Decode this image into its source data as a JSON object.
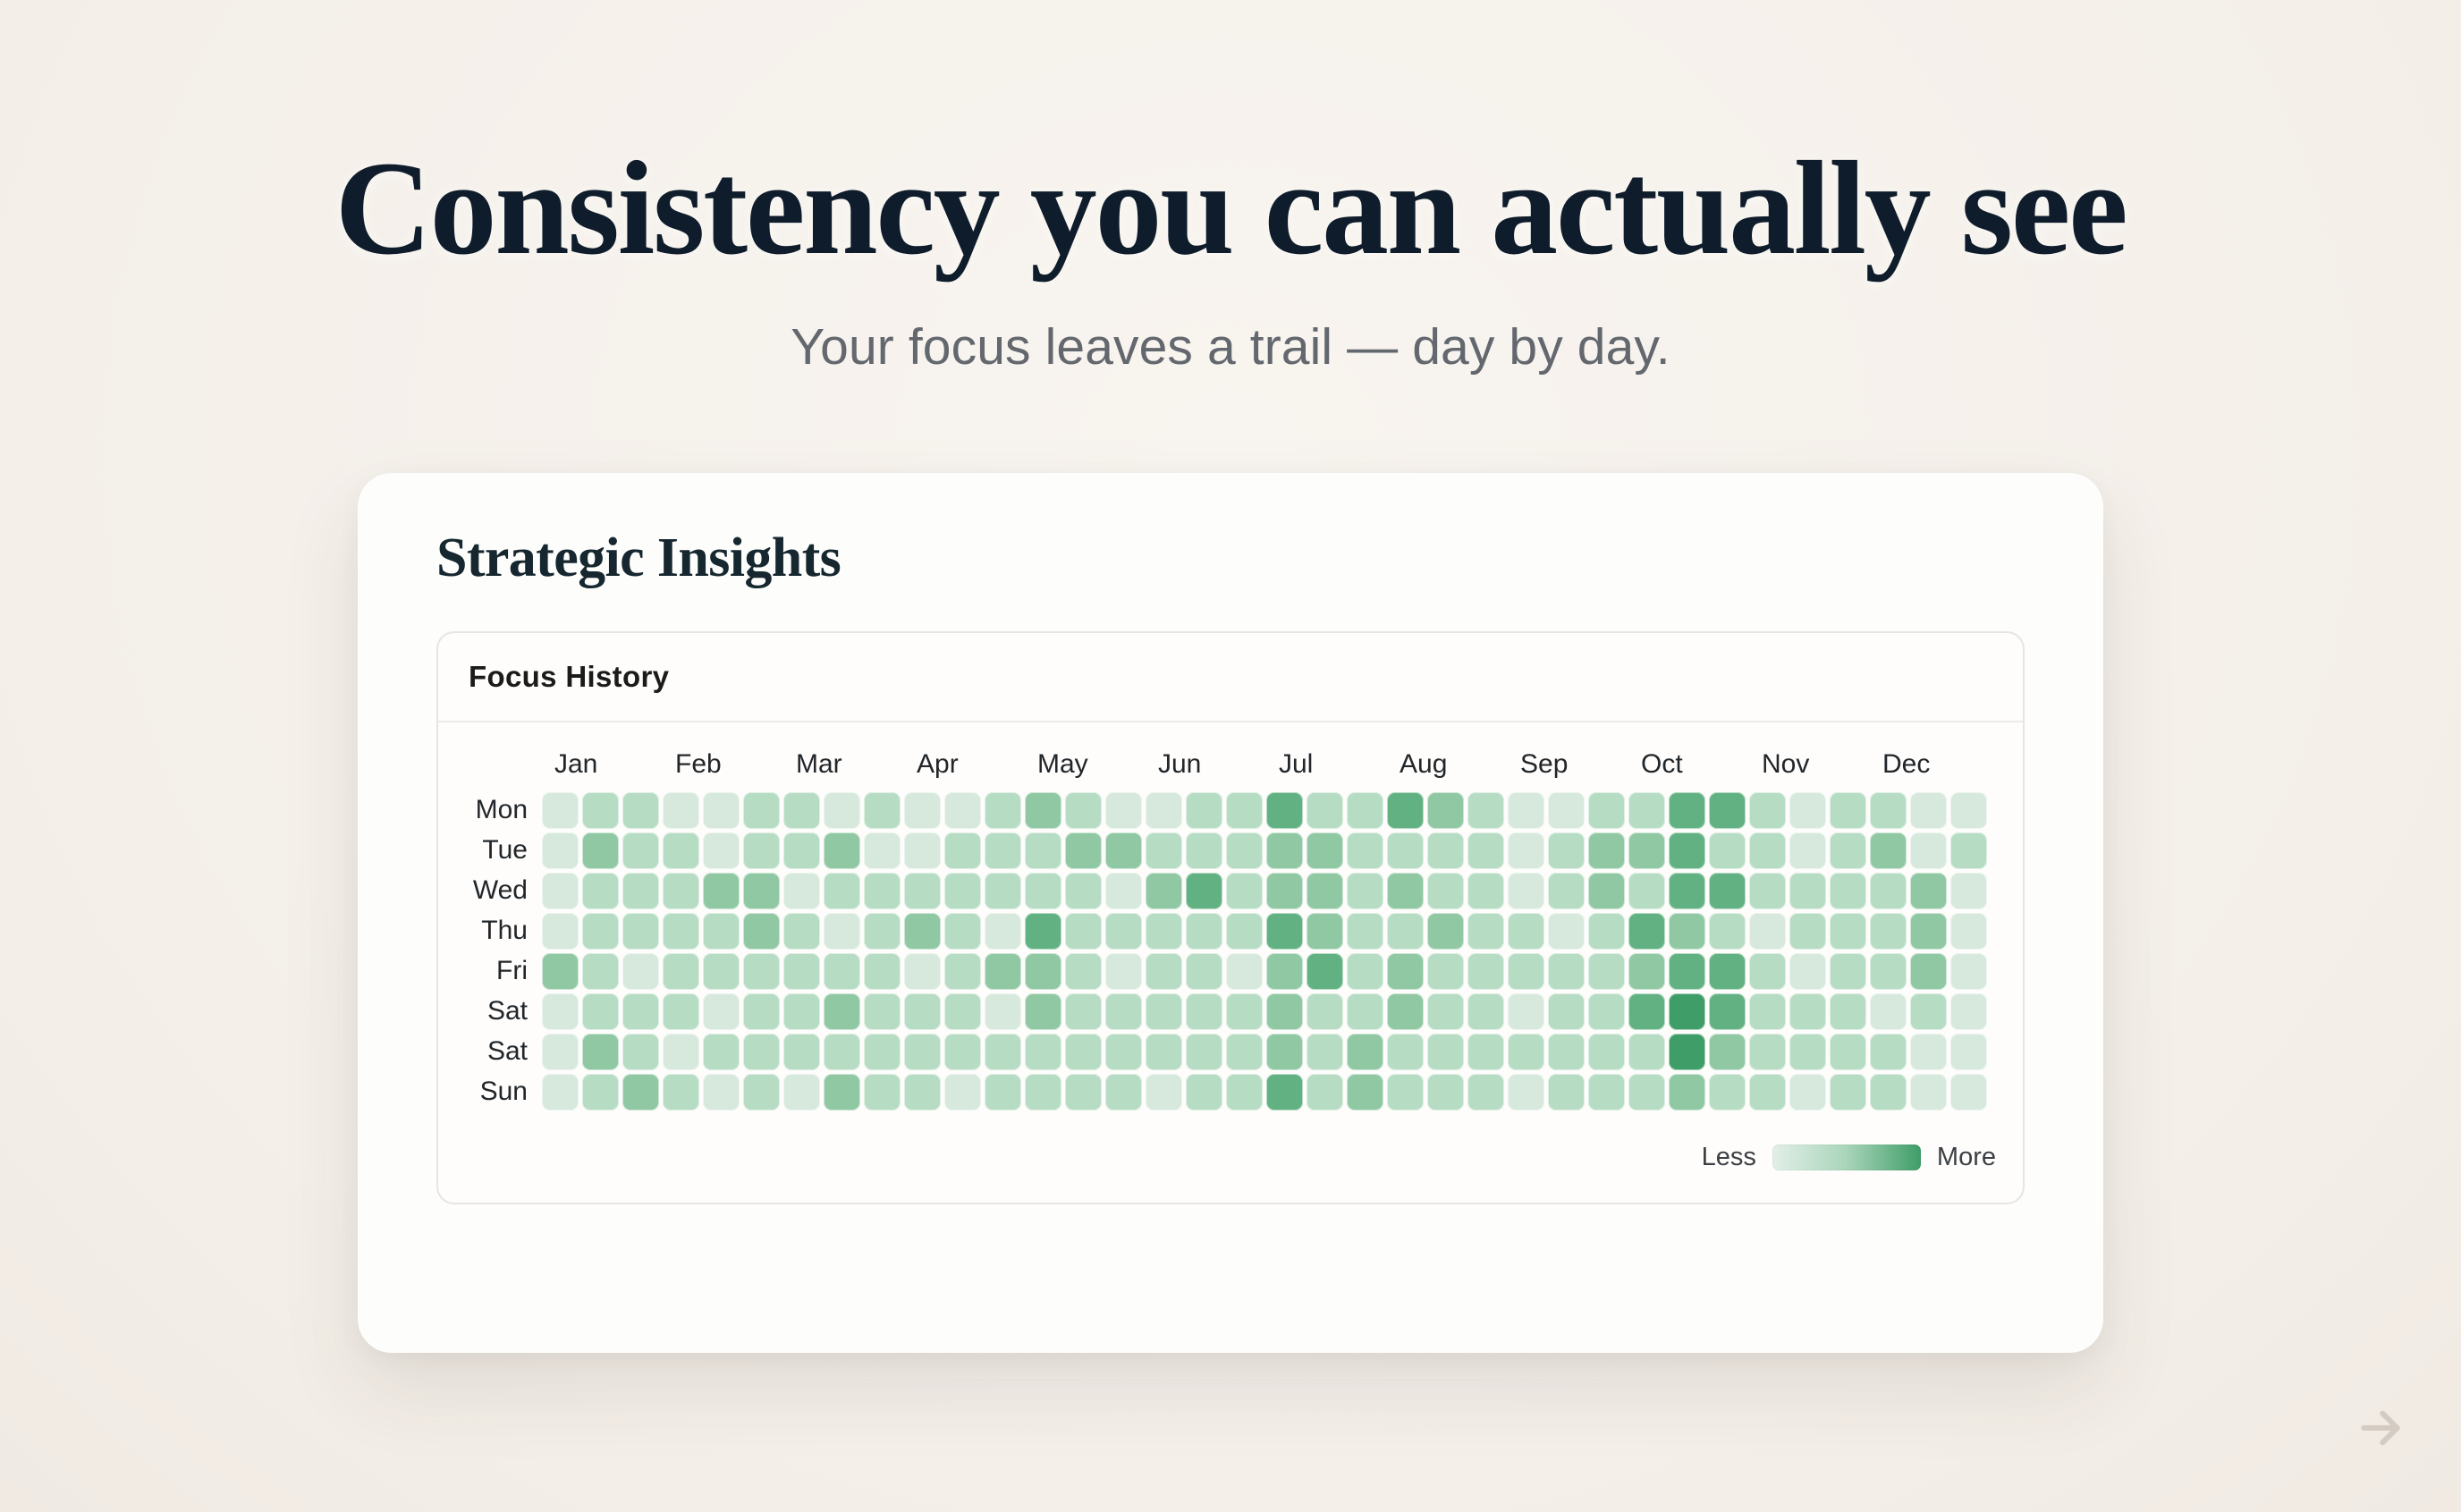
{
  "page": {
    "headline": "Consistency you can actually see",
    "subtitle": "Your focus leaves a trail — day by day."
  },
  "card": {
    "title": "Strategic Insights"
  },
  "panel": {
    "title": "Focus History"
  },
  "chart_data": {
    "type": "heatmap",
    "title": "Focus History",
    "x_labels_months": [
      "Jan",
      "Feb",
      "Mar",
      "Apr",
      "May",
      "Jun",
      "Jul",
      "Aug",
      "Sep",
      "Oct",
      "Nov",
      "Dec"
    ],
    "columns_per_month": 3,
    "y_labels_days": [
      "Mon",
      "Tue",
      "Wed",
      "Thu",
      "Fri",
      "Sat",
      "Sat",
      "Sun"
    ],
    "legend": {
      "less": "Less",
      "more": "More"
    },
    "level_colors": [
      "#eaf3ed",
      "#d6e9dc",
      "#b7dcc4",
      "#90c8a4",
      "#62b183",
      "#3f9d68"
    ],
    "values": [
      [
        1,
        2,
        2,
        1,
        1,
        2,
        2,
        1,
        2,
        1,
        1,
        2,
        3,
        2,
        1,
        1,
        2,
        2,
        4,
        2,
        2,
        4,
        3,
        2,
        1,
        1,
        2,
        2,
        4,
        4,
        2,
        1,
        2,
        2,
        1,
        1
      ],
      [
        1,
        3,
        2,
        2,
        1,
        2,
        2,
        3,
        1,
        1,
        2,
        2,
        2,
        3,
        3,
        2,
        2,
        2,
        3,
        3,
        2,
        2,
        2,
        2,
        1,
        2,
        3,
        3,
        4,
        2,
        2,
        1,
        2,
        3,
        1,
        2
      ],
      [
        1,
        2,
        2,
        2,
        3,
        3,
        1,
        2,
        2,
        2,
        2,
        2,
        2,
        2,
        1,
        3,
        4,
        2,
        3,
        3,
        2,
        3,
        2,
        2,
        1,
        2,
        3,
        2,
        4,
        4,
        2,
        2,
        2,
        2,
        3,
        1
      ],
      [
        1,
        2,
        2,
        2,
        2,
        3,
        2,
        1,
        2,
        3,
        2,
        1,
        4,
        2,
        2,
        2,
        2,
        2,
        4,
        3,
        2,
        2,
        3,
        2,
        2,
        1,
        2,
        4,
        3,
        2,
        1,
        2,
        2,
        2,
        3,
        1
      ],
      [
        3,
        2,
        1,
        2,
        2,
        2,
        2,
        2,
        2,
        1,
        2,
        3,
        3,
        2,
        1,
        2,
        2,
        1,
        3,
        4,
        2,
        3,
        2,
        2,
        2,
        2,
        2,
        3,
        4,
        4,
        2,
        1,
        2,
        2,
        3,
        1
      ],
      [
        1,
        2,
        2,
        2,
        1,
        2,
        2,
        3,
        2,
        2,
        2,
        1,
        3,
        2,
        2,
        2,
        2,
        2,
        3,
        2,
        2,
        3,
        2,
        2,
        1,
        2,
        2,
        4,
        5,
        4,
        2,
        2,
        2,
        1,
        2,
        1
      ],
      [
        1,
        3,
        2,
        1,
        2,
        2,
        2,
        2,
        2,
        2,
        2,
        2,
        2,
        2,
        2,
        2,
        2,
        2,
        3,
        2,
        3,
        2,
        2,
        2,
        2,
        2,
        2,
        2,
        5,
        3,
        2,
        2,
        2,
        2,
        1,
        1
      ],
      [
        1,
        2,
        3,
        2,
        1,
        2,
        1,
        3,
        2,
        2,
        1,
        2,
        2,
        2,
        2,
        1,
        2,
        2,
        4,
        2,
        3,
        2,
        2,
        2,
        1,
        2,
        2,
        2,
        3,
        2,
        2,
        1,
        2,
        2,
        1,
        1
      ]
    ]
  }
}
